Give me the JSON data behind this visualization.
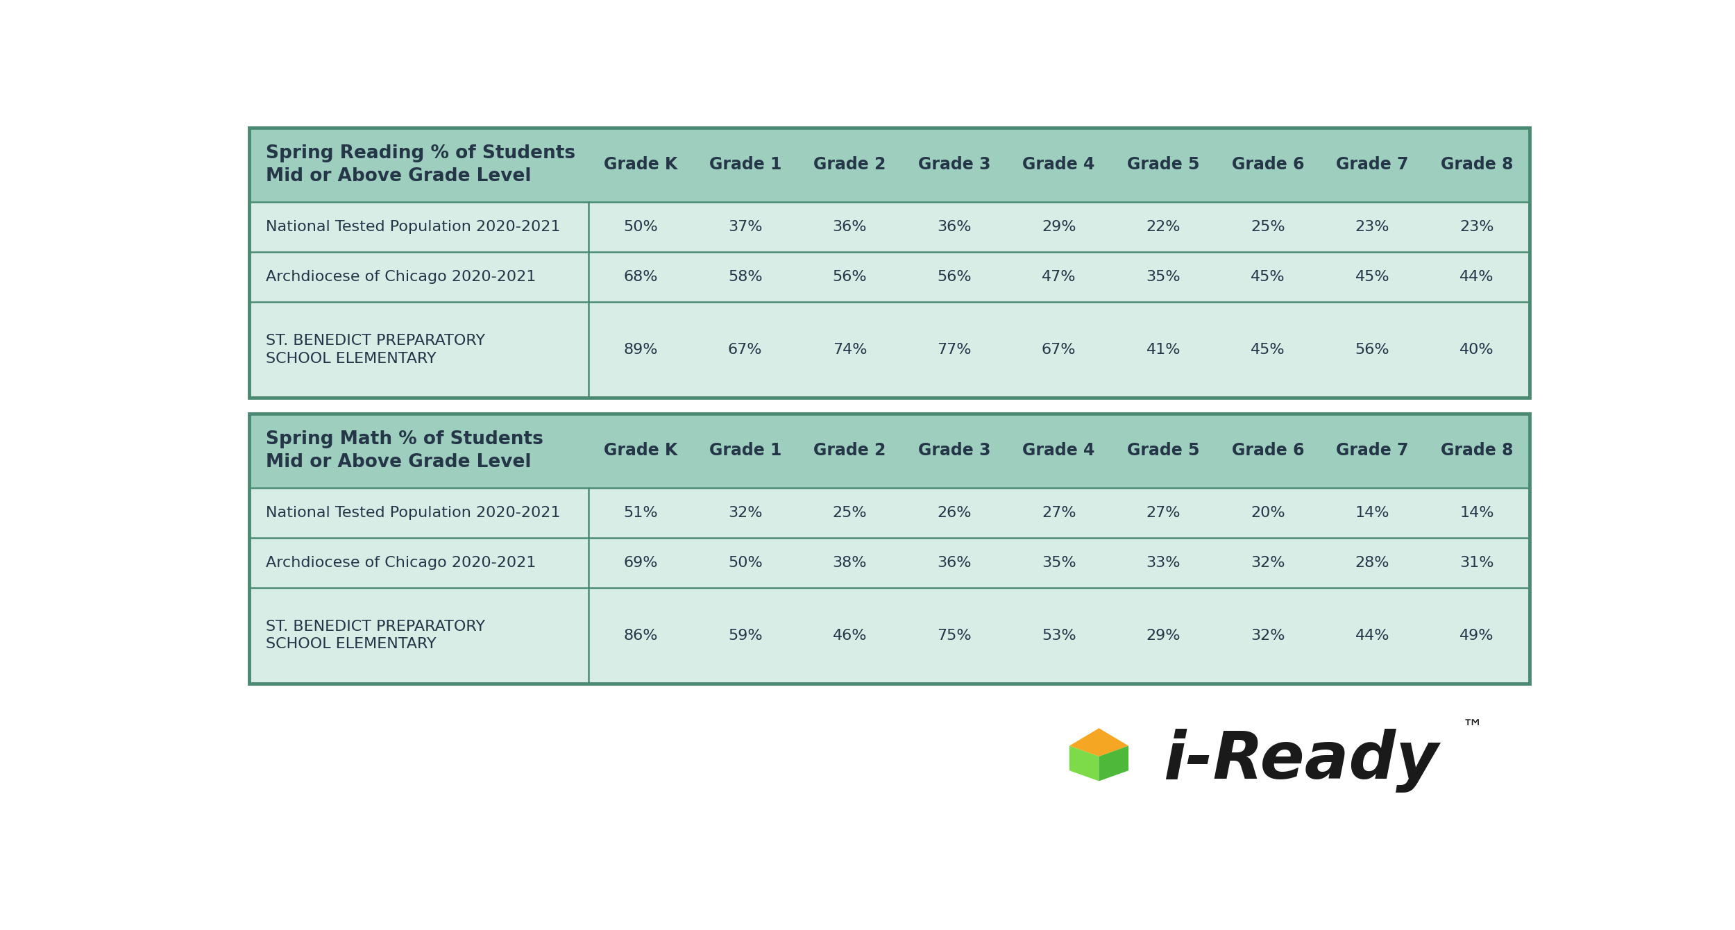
{
  "reading_header": "Spring Reading % of Students\nMid or Above Grade Level",
  "math_header": "Spring Math % of Students\nMid or Above Grade Level",
  "grade_headers": [
    "Grade K",
    "Grade 1",
    "Grade 2",
    "Grade 3",
    "Grade 4",
    "Grade 5",
    "Grade 6",
    "Grade 7",
    "Grade 8"
  ],
  "row_labels": [
    "National Tested Population 2020-2021",
    "Archdiocese of Chicago 2020-2021",
    "ST. BENEDICT PREPARATORY\nSCHOOL ELEMENTARY"
  ],
  "reading_data": [
    [
      "50%",
      "37%",
      "36%",
      "36%",
      "29%",
      "22%",
      "25%",
      "23%",
      "23%"
    ],
    [
      "68%",
      "58%",
      "56%",
      "56%",
      "47%",
      "35%",
      "45%",
      "45%",
      "44%"
    ],
    [
      "89%",
      "67%",
      "74%",
      "77%",
      "67%",
      "41%",
      "45%",
      "56%",
      "40%"
    ]
  ],
  "math_data": [
    [
      "51%",
      "32%",
      "25%",
      "26%",
      "27%",
      "27%",
      "20%",
      "14%",
      "14%"
    ],
    [
      "69%",
      "50%",
      "38%",
      "36%",
      "35%",
      "33%",
      "32%",
      "28%",
      "31%"
    ],
    [
      "86%",
      "59%",
      "46%",
      "75%",
      "53%",
      "29%",
      "32%",
      "44%",
      "49%"
    ]
  ],
  "header_bg_color": "#9ecfbe",
  "cell_bg_color": "#d8ede6",
  "border_color": "#4a8a72",
  "header_text_color": "#253648",
  "cell_text_color": "#253648",
  "outer_bg_color": "#ffffff",
  "logo_green_light": "#7ddb4a",
  "logo_green_dark": "#4db83a",
  "logo_orange": "#f5a623",
  "logo_text_color": "#1a1a1a"
}
